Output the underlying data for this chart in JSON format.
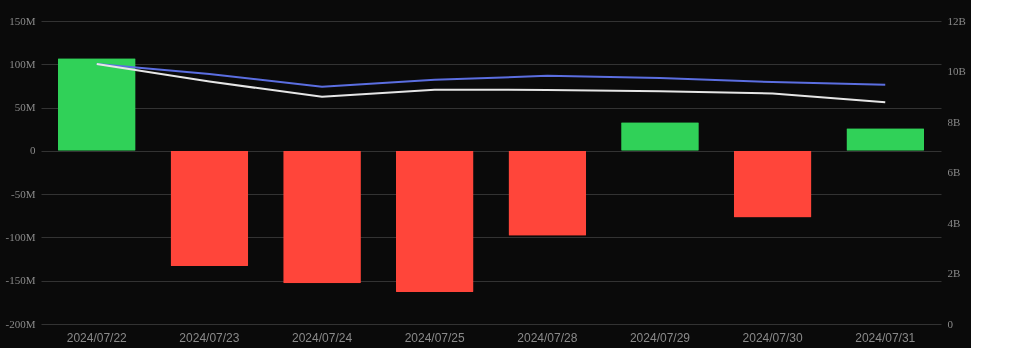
{
  "chart_data": {
    "type": "bar",
    "categories": [
      "2024/07/22",
      "2024/07/23",
      "2024/07/24",
      "2024/07/25",
      "2024/07/28",
      "2024/07/29",
      "2024/07/30",
      "2024/07/31"
    ],
    "series": [
      {
        "colors": [
          "#30d158",
          "#ff453a",
          "#ff453a",
          "#ff453a",
          "#ff453a",
          "#30d158",
          "#ff453a",
          "#30d158"
        ],
        "values": [
          107,
          -133,
          -153,
          -163,
          -98,
          33,
          -77,
          26
        ]
      },
      {
        "type": "line",
        "axis": "y2",
        "color": "#5b6ee1",
        "values": [
          10.3,
          9.9,
          9.4,
          9.67,
          9.83,
          9.74,
          9.58,
          9.48
        ]
      },
      {
        "type": "line",
        "axis": "y2",
        "color": "#e6e6e6",
        "values": [
          10.3,
          9.6,
          9.0,
          9.28,
          9.27,
          9.22,
          9.13,
          8.78
        ]
      }
    ],
    "ylim": [
      -200,
      150
    ],
    "yticks": [
      {
        "value": -200,
        "label": "-200M"
      },
      {
        "value": -150,
        "label": "-150M"
      },
      {
        "value": -100,
        "label": "-100M"
      },
      {
        "value": -50,
        "label": "-50M"
      },
      0,
      {
        "value": 50,
        "label": "50M"
      },
      {
        "value": 100,
        "label": "100M"
      },
      {
        "value": 150,
        "label": "150M"
      }
    ],
    "y2lim": [
      0,
      12
    ],
    "y2ticks": [
      0,
      {
        "value": 2,
        "label": "2B"
      },
      {
        "value": 4,
        "label": "4B"
      },
      {
        "value": 6,
        "label": "6B"
      },
      {
        "value": 8,
        "label": "8B"
      },
      {
        "value": 10,
        "label": "10B"
      },
      {
        "value": 12,
        "label": "12B"
      }
    ],
    "grid": "y"
  }
}
